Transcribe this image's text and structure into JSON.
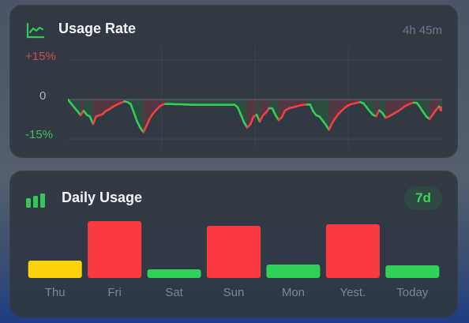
{
  "usage_rate": {
    "title": "Usage Rate",
    "duration": "4h 45m",
    "y_max_label": "+15%",
    "y_mid_label": "0",
    "y_min_label": "-15%",
    "colors": {
      "up": "#ef4043",
      "down": "#33cc55",
      "fill_up": "#5a3640",
      "fill_down": "#2f5040"
    },
    "icon": "line-chart-icon"
  },
  "daily_usage": {
    "title": "Daily Usage",
    "range_label": "7d",
    "icon": "signal-bars-icon",
    "colors": {
      "high": "#fb3a41",
      "low": "#2fd158",
      "mid": "#fdd20a"
    }
  },
  "chart_data": [
    {
      "type": "line",
      "title": "Usage Rate",
      "ylim": [
        -15,
        15
      ],
      "x": [
        0,
        1,
        2,
        3,
        4,
        5,
        6,
        7,
        8,
        9,
        10,
        11,
        12,
        13,
        14,
        15,
        16,
        17,
        18,
        19,
        20,
        21,
        22,
        23,
        24,
        25,
        26,
        27,
        28,
        29,
        30,
        31,
        32,
        33,
        34,
        35,
        36,
        37,
        38,
        39,
        40,
        41,
        42,
        43,
        44,
        45,
        46,
        47,
        48,
        49,
        50,
        51,
        52,
        53,
        54,
        55,
        56,
        57,
        58,
        59,
        60,
        61,
        62,
        63,
        64,
        65,
        66,
        67,
        68,
        69,
        70,
        71,
        72,
        73,
        74,
        75,
        76,
        77,
        78,
        79,
        80,
        81,
        82,
        83,
        84,
        85,
        86,
        87,
        88,
        89,
        90,
        91,
        92,
        93,
        94,
        95,
        96,
        97,
        98,
        99,
        100,
        101,
        102,
        103,
        104,
        105,
        106,
        107,
        108,
        109,
        110,
        111,
        112,
        113,
        114,
        115,
        116,
        117,
        118,
        119
      ],
      "values": [
        0,
        -1.5,
        -3,
        -4.4,
        -5.9,
        -4.3,
        -5.8,
        -6.5,
        -9.3,
        -6.4,
        -6,
        -5.6,
        -4.4,
        -3.8,
        -3,
        -2.3,
        -1.7,
        -1.2,
        -0.7,
        -1,
        -1.8,
        -5,
        -8.3,
        -10.7,
        -12.4,
        -10,
        -7.3,
        -5.4,
        -4.1,
        -2.8,
        -2,
        -1.7,
        -1.7,
        -1.7,
        -1.8,
        -1.8,
        -1.8,
        -1.9,
        -1.9,
        -2,
        -2,
        -2,
        -2,
        -2,
        -2,
        -2,
        -2,
        -2,
        -2,
        -2,
        -2,
        -2,
        -2,
        -2,
        -3,
        -5.8,
        -8.7,
        -10.6,
        -9.5,
        -6.6,
        -5.8,
        -8.4,
        -6.1,
        -4.9,
        -3.3,
        -3.4,
        -5.9,
        -7.8,
        -6.8,
        -4.3,
        -3.5,
        -3.1,
        -2.8,
        -2.5,
        -2.2,
        -2,
        -1.9,
        -1.9,
        -4.5,
        -6,
        -6.5,
        -8,
        -9.6,
        -11.5,
        -9,
        -7.2,
        -5.5,
        -4.3,
        -3.2,
        -2.3,
        -1.8,
        -1.5,
        -1.2,
        -1,
        -1.5,
        -3,
        -4.5,
        -5.8,
        -6.4,
        -4.1,
        -5.1,
        -6.9,
        -6.5,
        -5.8,
        -5.1,
        -4.4,
        -3.6,
        -2.7,
        -2,
        -1.5,
        -1.2,
        -1.3,
        -3,
        -4.8,
        -6.5,
        -7.4,
        -5.8,
        -4,
        -2.7,
        -3.6
      ],
      "xlabel": "",
      "ylabel": ""
    },
    {
      "type": "bar",
      "title": "Daily Usage",
      "categories": [
        "Thu",
        "Fri",
        "Sat",
        "Sun",
        "Mon",
        "Yest.",
        "Today"
      ],
      "values": [
        22,
        72,
        11,
        66,
        17,
        68,
        16
      ],
      "colors": [
        "#fdd20a",
        "#fb3a41",
        "#2fd158",
        "#fb3a41",
        "#2fd158",
        "#fb3a41",
        "#2fd158"
      ],
      "ylim": [
        0,
        72
      ]
    }
  ]
}
